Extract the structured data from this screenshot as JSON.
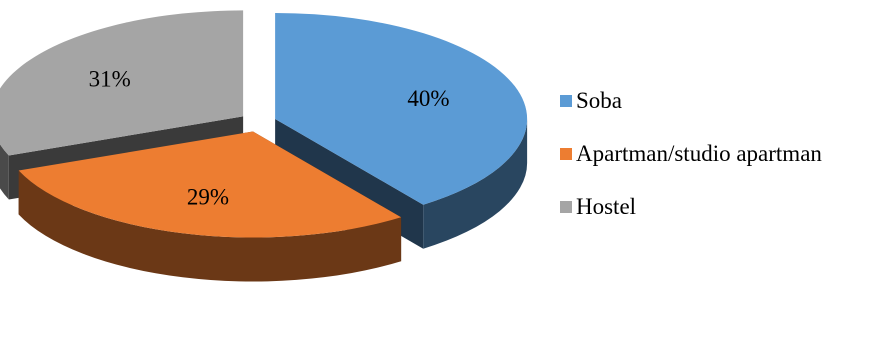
{
  "chart_data": {
    "type": "pie",
    "style": "3d-exploded",
    "title": "",
    "slices": [
      {
        "name": "Soba",
        "value": 40,
        "label": "40%",
        "color": "#5B9BD5"
      },
      {
        "name": "Apartman/studio apartman",
        "value": 29,
        "label": "29%",
        "color": "#ED7D31"
      },
      {
        "name": "Hostel",
        "value": 31,
        "label": "31%",
        "color": "#A5A5A5"
      }
    ],
    "legend": {
      "position": "right",
      "entries": [
        "Soba",
        "Apartman/studio apartman",
        "Hostel"
      ]
    }
  }
}
